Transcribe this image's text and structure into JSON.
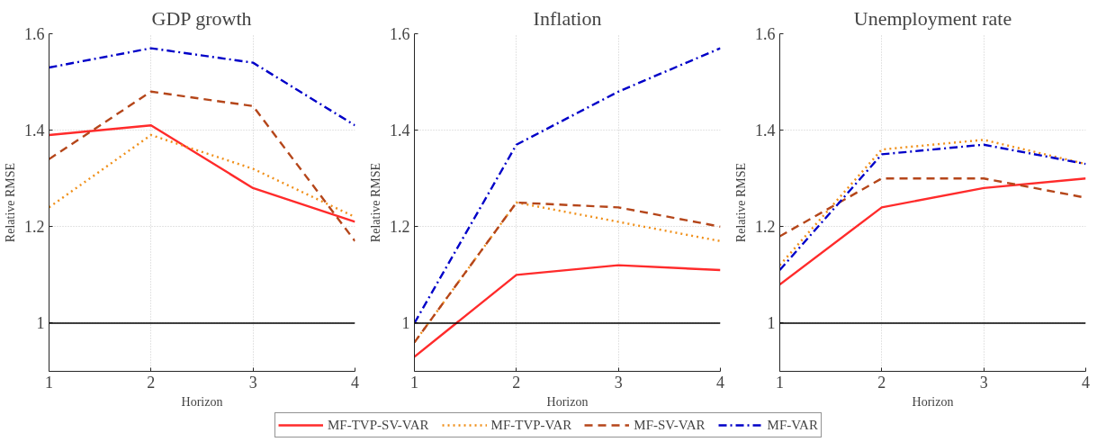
{
  "chart_data": [
    {
      "type": "line",
      "title": "GDP growth",
      "xlabel": "Horizon",
      "ylabel": "Relative RMSE",
      "x": [
        1,
        2,
        3,
        4
      ],
      "xlim": [
        1,
        4
      ],
      "xticks": [
        1,
        2,
        3,
        4
      ],
      "ylim": [
        0.9,
        1.6
      ],
      "yticks": [
        1,
        1.2,
        1.4,
        1.6
      ],
      "grid": true,
      "ref_lines": [
        {
          "axis": "y",
          "value": 1,
          "color": "#000000"
        }
      ],
      "series": [
        {
          "color": "#ff2b2b",
          "line_style": "solid",
          "values": [
            1.39,
            1.41,
            1.28,
            1.21
          ]
        },
        {
          "color": "#f0901a",
          "line_style": "dotted",
          "values": [
            1.24,
            1.39,
            1.32,
            1.22
          ]
        },
        {
          "color": "#b5461a",
          "line_style": "dashed",
          "values": [
            1.34,
            1.48,
            1.45,
            1.17
          ]
        },
        {
          "color": "#0000c8",
          "line_style": "dashdot",
          "values": [
            1.53,
            1.57,
            1.54,
            1.41
          ]
        }
      ]
    },
    {
      "type": "line",
      "title": "Inflation",
      "xlabel": "Horizon",
      "ylabel": "Relative RMSE",
      "x": [
        1,
        2,
        3,
        4
      ],
      "xlim": [
        1,
        4
      ],
      "xticks": [
        1,
        2,
        3,
        4
      ],
      "ylim": [
        0.9,
        1.6
      ],
      "yticks": [
        1,
        1.2,
        1.4,
        1.6
      ],
      "grid": true,
      "legend": "bottom",
      "ref_lines": [
        {
          "axis": "y",
          "value": 1,
          "color": "#000000"
        }
      ],
      "series": [
        {
          "name": "MF-TVP-SV-VAR",
          "color": "#ff2b2b",
          "line_style": "solid",
          "values": [
            0.93,
            1.1,
            1.12,
            1.11
          ]
        },
        {
          "name": "MF-TVP-VAR",
          "color": "#f0901a",
          "line_style": "dotted",
          "values": [
            0.96,
            1.25,
            1.21,
            1.17
          ]
        },
        {
          "name": "MF-SV-VAR",
          "color": "#b5461a",
          "line_style": "dashed",
          "values": [
            0.96,
            1.25,
            1.24,
            1.2
          ]
        },
        {
          "name": "MF-VAR",
          "color": "#0000c8",
          "line_style": "dashdot",
          "values": [
            1.0,
            1.37,
            1.48,
            1.57
          ]
        }
      ]
    },
    {
      "type": "line",
      "title": "Unemployment rate",
      "xlabel": "Horizon",
      "ylabel": "Relative RMSE",
      "x": [
        1,
        2,
        3,
        4
      ],
      "xlim": [
        1,
        4
      ],
      "xticks": [
        1,
        2,
        3,
        4
      ],
      "ylim": [
        0.9,
        1.6
      ],
      "yticks": [
        1,
        1.2,
        1.4,
        1.6
      ],
      "grid": true,
      "ref_lines": [
        {
          "axis": "y",
          "value": 1,
          "color": "#000000"
        }
      ],
      "series": [
        {
          "color": "#ff2b2b",
          "line_style": "solid",
          "values": [
            1.08,
            1.24,
            1.28,
            1.3
          ]
        },
        {
          "color": "#f0901a",
          "line_style": "dotted",
          "values": [
            1.12,
            1.36,
            1.38,
            1.33
          ]
        },
        {
          "color": "#b5461a",
          "line_style": "dashed",
          "values": [
            1.18,
            1.3,
            1.3,
            1.26
          ]
        },
        {
          "color": "#0000c8",
          "line_style": "dashdot",
          "values": [
            1.11,
            1.35,
            1.37,
            1.33
          ]
        }
      ]
    }
  ]
}
